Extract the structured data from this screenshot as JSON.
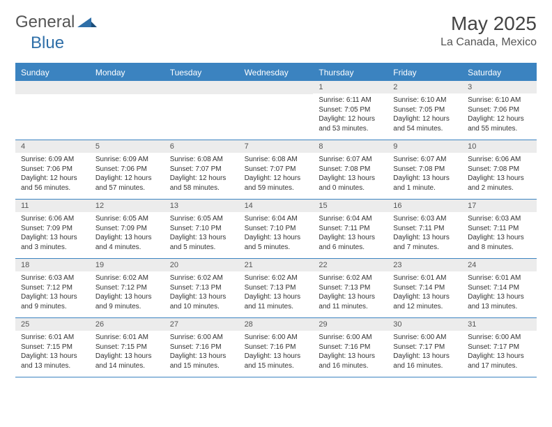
{
  "header": {
    "logo_general": "General",
    "logo_blue": "Blue",
    "month_title": "May 2025",
    "location": "La Canada, Mexico"
  },
  "colors": {
    "header_bar": "#3b83c0",
    "daynum_bg": "#ececec",
    "text": "#333333",
    "title_text": "#444444",
    "logo_blue": "#2f6fa8"
  },
  "daynames": [
    "Sunday",
    "Monday",
    "Tuesday",
    "Wednesday",
    "Thursday",
    "Friday",
    "Saturday"
  ],
  "weeks": [
    [
      {
        "num": "",
        "sunrise": "",
        "sunset": "",
        "daylight1": "",
        "daylight2": ""
      },
      {
        "num": "",
        "sunrise": "",
        "sunset": "",
        "daylight1": "",
        "daylight2": ""
      },
      {
        "num": "",
        "sunrise": "",
        "sunset": "",
        "daylight1": "",
        "daylight2": ""
      },
      {
        "num": "",
        "sunrise": "",
        "sunset": "",
        "daylight1": "",
        "daylight2": ""
      },
      {
        "num": "1",
        "sunrise": "Sunrise: 6:11 AM",
        "sunset": "Sunset: 7:05 PM",
        "daylight1": "Daylight: 12 hours",
        "daylight2": "and 53 minutes."
      },
      {
        "num": "2",
        "sunrise": "Sunrise: 6:10 AM",
        "sunset": "Sunset: 7:05 PM",
        "daylight1": "Daylight: 12 hours",
        "daylight2": "and 54 minutes."
      },
      {
        "num": "3",
        "sunrise": "Sunrise: 6:10 AM",
        "sunset": "Sunset: 7:06 PM",
        "daylight1": "Daylight: 12 hours",
        "daylight2": "and 55 minutes."
      }
    ],
    [
      {
        "num": "4",
        "sunrise": "Sunrise: 6:09 AM",
        "sunset": "Sunset: 7:06 PM",
        "daylight1": "Daylight: 12 hours",
        "daylight2": "and 56 minutes."
      },
      {
        "num": "5",
        "sunrise": "Sunrise: 6:09 AM",
        "sunset": "Sunset: 7:06 PM",
        "daylight1": "Daylight: 12 hours",
        "daylight2": "and 57 minutes."
      },
      {
        "num": "6",
        "sunrise": "Sunrise: 6:08 AM",
        "sunset": "Sunset: 7:07 PM",
        "daylight1": "Daylight: 12 hours",
        "daylight2": "and 58 minutes."
      },
      {
        "num": "7",
        "sunrise": "Sunrise: 6:08 AM",
        "sunset": "Sunset: 7:07 PM",
        "daylight1": "Daylight: 12 hours",
        "daylight2": "and 59 minutes."
      },
      {
        "num": "8",
        "sunrise": "Sunrise: 6:07 AM",
        "sunset": "Sunset: 7:08 PM",
        "daylight1": "Daylight: 13 hours",
        "daylight2": "and 0 minutes."
      },
      {
        "num": "9",
        "sunrise": "Sunrise: 6:07 AM",
        "sunset": "Sunset: 7:08 PM",
        "daylight1": "Daylight: 13 hours",
        "daylight2": "and 1 minute."
      },
      {
        "num": "10",
        "sunrise": "Sunrise: 6:06 AM",
        "sunset": "Sunset: 7:08 PM",
        "daylight1": "Daylight: 13 hours",
        "daylight2": "and 2 minutes."
      }
    ],
    [
      {
        "num": "11",
        "sunrise": "Sunrise: 6:06 AM",
        "sunset": "Sunset: 7:09 PM",
        "daylight1": "Daylight: 13 hours",
        "daylight2": "and 3 minutes."
      },
      {
        "num": "12",
        "sunrise": "Sunrise: 6:05 AM",
        "sunset": "Sunset: 7:09 PM",
        "daylight1": "Daylight: 13 hours",
        "daylight2": "and 4 minutes."
      },
      {
        "num": "13",
        "sunrise": "Sunrise: 6:05 AM",
        "sunset": "Sunset: 7:10 PM",
        "daylight1": "Daylight: 13 hours",
        "daylight2": "and 5 minutes."
      },
      {
        "num": "14",
        "sunrise": "Sunrise: 6:04 AM",
        "sunset": "Sunset: 7:10 PM",
        "daylight1": "Daylight: 13 hours",
        "daylight2": "and 5 minutes."
      },
      {
        "num": "15",
        "sunrise": "Sunrise: 6:04 AM",
        "sunset": "Sunset: 7:11 PM",
        "daylight1": "Daylight: 13 hours",
        "daylight2": "and 6 minutes."
      },
      {
        "num": "16",
        "sunrise": "Sunrise: 6:03 AM",
        "sunset": "Sunset: 7:11 PM",
        "daylight1": "Daylight: 13 hours",
        "daylight2": "and 7 minutes."
      },
      {
        "num": "17",
        "sunrise": "Sunrise: 6:03 AM",
        "sunset": "Sunset: 7:11 PM",
        "daylight1": "Daylight: 13 hours",
        "daylight2": "and 8 minutes."
      }
    ],
    [
      {
        "num": "18",
        "sunrise": "Sunrise: 6:03 AM",
        "sunset": "Sunset: 7:12 PM",
        "daylight1": "Daylight: 13 hours",
        "daylight2": "and 9 minutes."
      },
      {
        "num": "19",
        "sunrise": "Sunrise: 6:02 AM",
        "sunset": "Sunset: 7:12 PM",
        "daylight1": "Daylight: 13 hours",
        "daylight2": "and 9 minutes."
      },
      {
        "num": "20",
        "sunrise": "Sunrise: 6:02 AM",
        "sunset": "Sunset: 7:13 PM",
        "daylight1": "Daylight: 13 hours",
        "daylight2": "and 10 minutes."
      },
      {
        "num": "21",
        "sunrise": "Sunrise: 6:02 AM",
        "sunset": "Sunset: 7:13 PM",
        "daylight1": "Daylight: 13 hours",
        "daylight2": "and 11 minutes."
      },
      {
        "num": "22",
        "sunrise": "Sunrise: 6:02 AM",
        "sunset": "Sunset: 7:13 PM",
        "daylight1": "Daylight: 13 hours",
        "daylight2": "and 11 minutes."
      },
      {
        "num": "23",
        "sunrise": "Sunrise: 6:01 AM",
        "sunset": "Sunset: 7:14 PM",
        "daylight1": "Daylight: 13 hours",
        "daylight2": "and 12 minutes."
      },
      {
        "num": "24",
        "sunrise": "Sunrise: 6:01 AM",
        "sunset": "Sunset: 7:14 PM",
        "daylight1": "Daylight: 13 hours",
        "daylight2": "and 13 minutes."
      }
    ],
    [
      {
        "num": "25",
        "sunrise": "Sunrise: 6:01 AM",
        "sunset": "Sunset: 7:15 PM",
        "daylight1": "Daylight: 13 hours",
        "daylight2": "and 13 minutes."
      },
      {
        "num": "26",
        "sunrise": "Sunrise: 6:01 AM",
        "sunset": "Sunset: 7:15 PM",
        "daylight1": "Daylight: 13 hours",
        "daylight2": "and 14 minutes."
      },
      {
        "num": "27",
        "sunrise": "Sunrise: 6:00 AM",
        "sunset": "Sunset: 7:16 PM",
        "daylight1": "Daylight: 13 hours",
        "daylight2": "and 15 minutes."
      },
      {
        "num": "28",
        "sunrise": "Sunrise: 6:00 AM",
        "sunset": "Sunset: 7:16 PM",
        "daylight1": "Daylight: 13 hours",
        "daylight2": "and 15 minutes."
      },
      {
        "num": "29",
        "sunrise": "Sunrise: 6:00 AM",
        "sunset": "Sunset: 7:16 PM",
        "daylight1": "Daylight: 13 hours",
        "daylight2": "and 16 minutes."
      },
      {
        "num": "30",
        "sunrise": "Sunrise: 6:00 AM",
        "sunset": "Sunset: 7:17 PM",
        "daylight1": "Daylight: 13 hours",
        "daylight2": "and 16 minutes."
      },
      {
        "num": "31",
        "sunrise": "Sunrise: 6:00 AM",
        "sunset": "Sunset: 7:17 PM",
        "daylight1": "Daylight: 13 hours",
        "daylight2": "and 17 minutes."
      }
    ]
  ]
}
